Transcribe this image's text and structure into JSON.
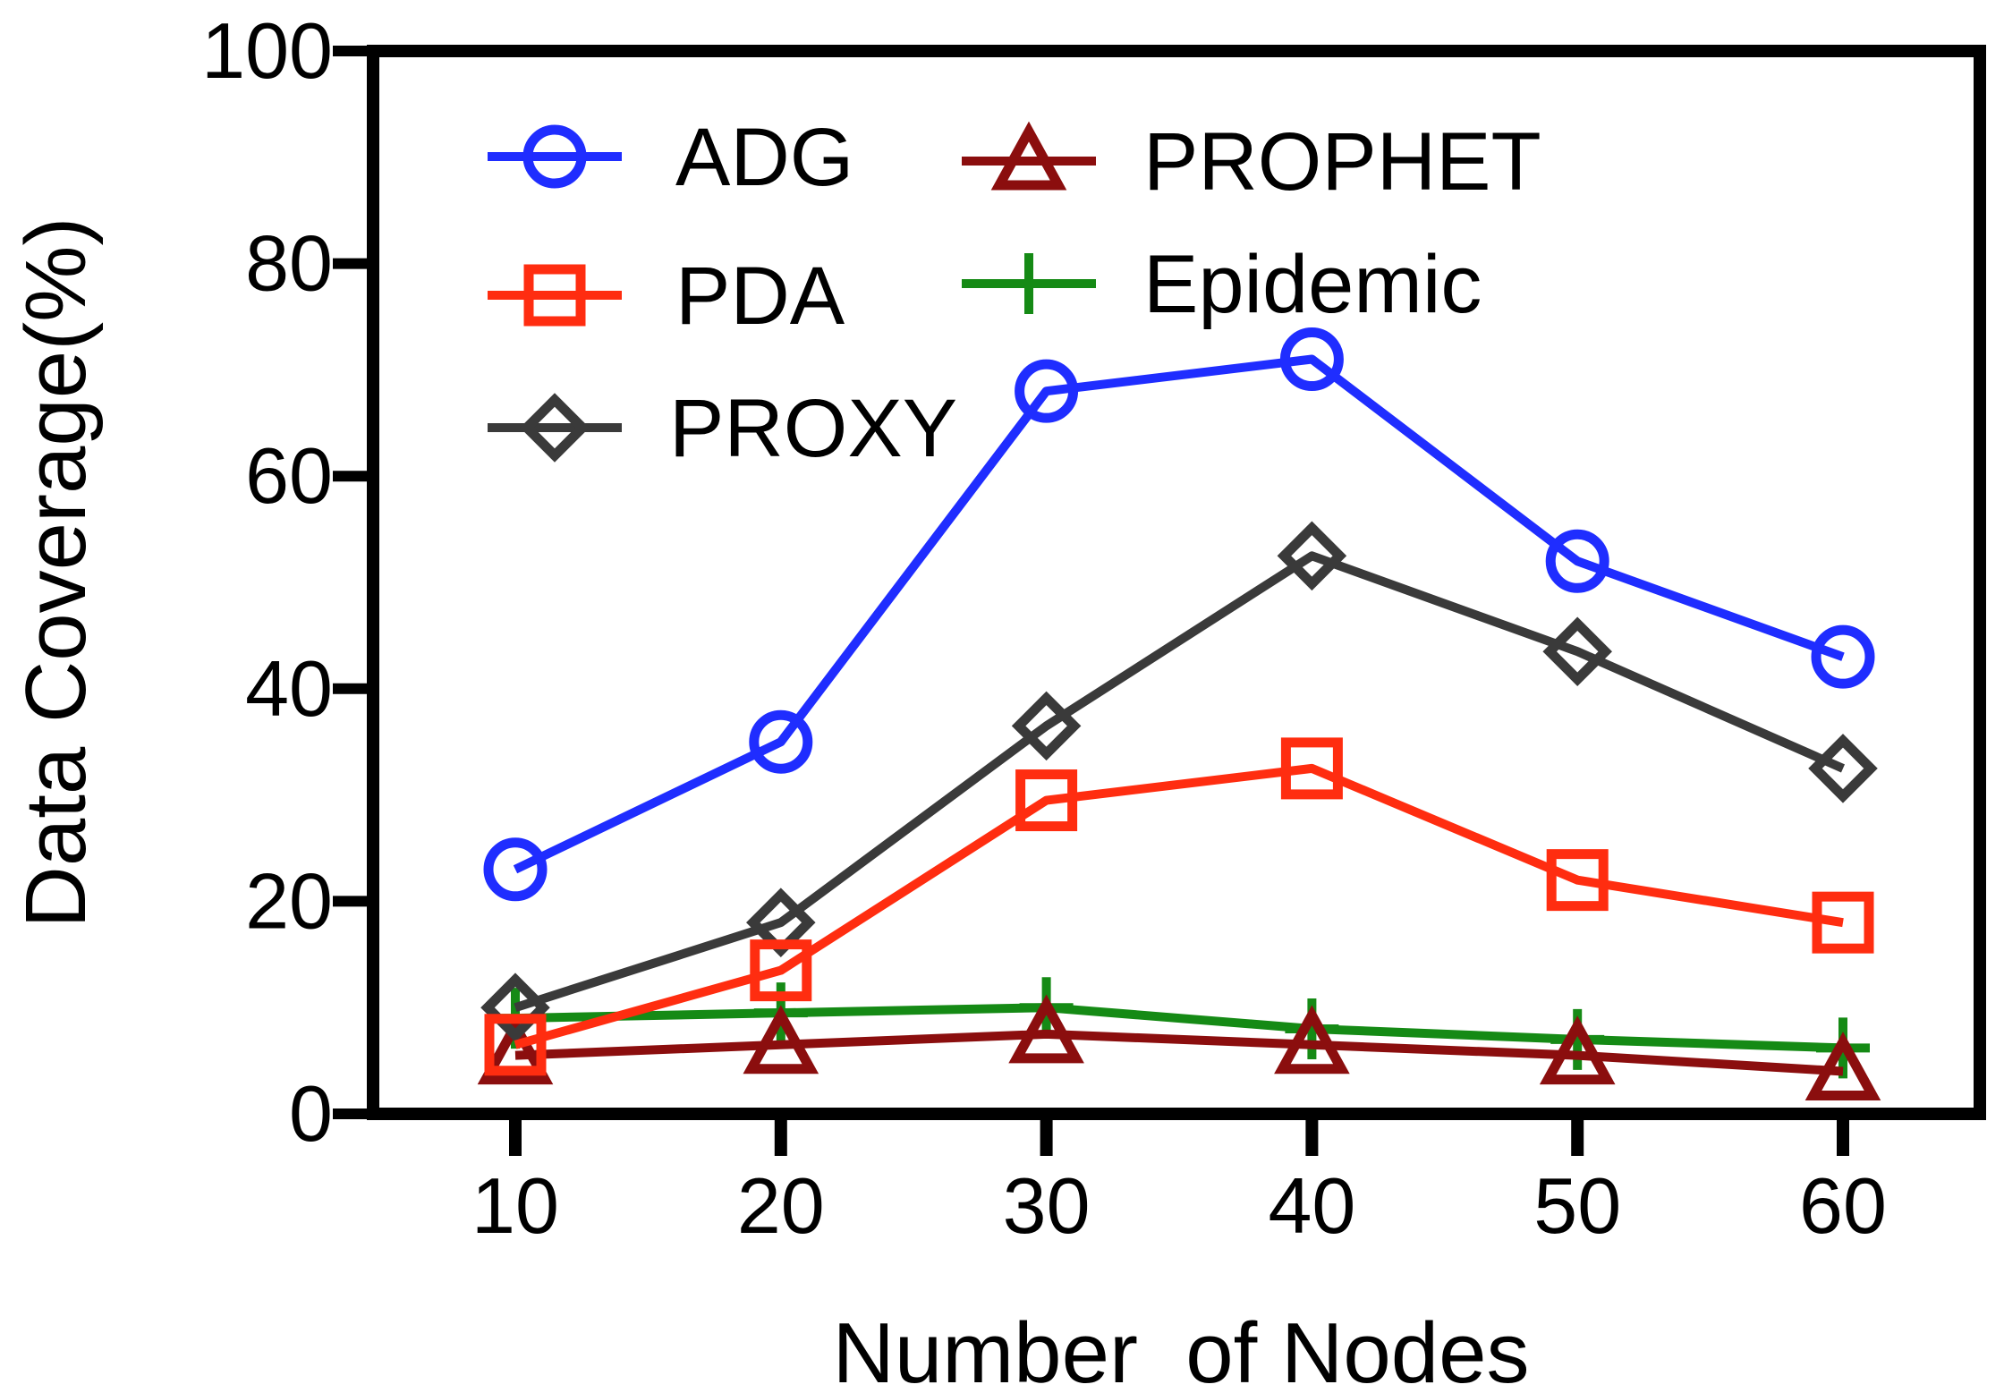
{
  "chart_data": {
    "type": "line",
    "title": "",
    "xlabel": "Number  of Nodes",
    "ylabel": "Data Coverage(%)",
    "x": [
      10,
      20,
      30,
      40,
      50,
      60
    ],
    "x_tick_labels": [
      "10",
      "20",
      "30",
      "40",
      "50",
      "60"
    ],
    "ylim": [
      0,
      100
    ],
    "y_ticks": [
      0,
      20,
      40,
      60,
      80,
      100
    ],
    "y_tick_labels": [
      "0",
      "20",
      "40",
      "60",
      "80",
      "100"
    ],
    "grid": false,
    "legend_position": "top-left",
    "series": [
      {
        "name": "ADG",
        "color": "#1f2dff",
        "marker": "circle",
        "values": [
          23,
          35,
          68,
          71,
          52,
          43
        ]
      },
      {
        "name": "PDA",
        "color": "#ff2d10",
        "marker": "square",
        "values": [
          6.5,
          13.5,
          29.5,
          32.5,
          22,
          18
        ]
      },
      {
        "name": "PROXY",
        "color": "#3a3a3a",
        "marker": "diamond",
        "values": [
          10,
          18,
          36.5,
          52.5,
          43.5,
          32.5
        ]
      },
      {
        "name": "PROPHET",
        "color": "#8b0e0e",
        "marker": "triangle",
        "values": [
          5.5,
          6.5,
          7.5,
          6.5,
          5.5,
          4
        ]
      },
      {
        "name": "Epidemic",
        "color": "#158a15",
        "marker": "plus",
        "values": [
          9,
          9.5,
          10,
          8,
          7,
          6.2
        ]
      }
    ]
  }
}
